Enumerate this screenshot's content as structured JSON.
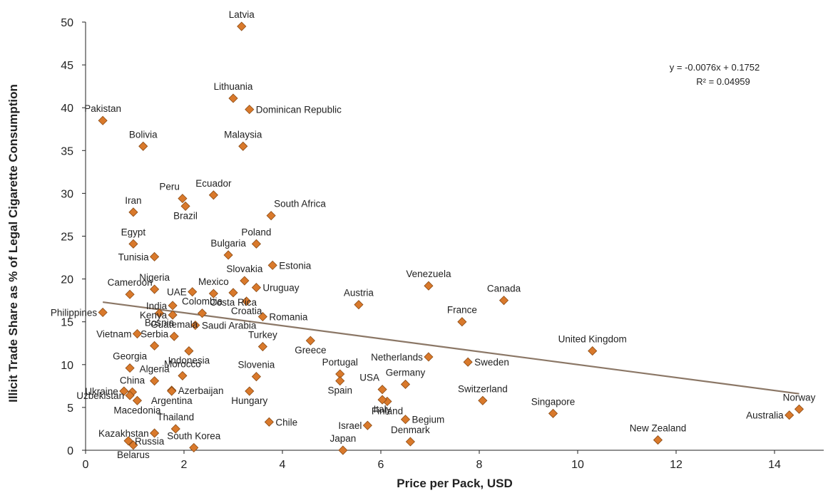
{
  "chart_data": {
    "type": "scatter",
    "xlabel": "Price per Pack, USD",
    "ylabel": "Illicit Trade Share as % of Legal Cigarette Consumption",
    "xlim": [
      0,
      15
    ],
    "ylim": [
      0,
      50
    ],
    "xticks": [
      0,
      2,
      4,
      6,
      8,
      10,
      12,
      14
    ],
    "yticks": [
      0,
      5,
      10,
      15,
      20,
      25,
      30,
      35,
      40,
      45,
      50
    ],
    "grid": false,
    "point_color": "#D9792B",
    "trendline_color": "#8B7766",
    "equation": "y = -0.0076x + 0.1752",
    "r_squared": "R² = 0.04959",
    "trendline": {
      "x0": 0.35,
      "y0": 17.3,
      "x1": 14.5,
      "y1": 6.6
    },
    "points": [
      {
        "label": "Latvia",
        "x": 3.17,
        "y": 49.5,
        "anchor": "top"
      },
      {
        "label": "Lithuania",
        "x": 3.0,
        "y": 41.1,
        "anchor": "top"
      },
      {
        "label": "Dominican Republic",
        "x": 3.33,
        "y": 39.8,
        "anchor": "right"
      },
      {
        "label": "Pakistan",
        "x": 0.35,
        "y": 38.5,
        "anchor": "top"
      },
      {
        "label": "Bolivia",
        "x": 1.17,
        "y": 35.5,
        "anchor": "top"
      },
      {
        "label": "Malaysia",
        "x": 3.2,
        "y": 35.5,
        "anchor": "top"
      },
      {
        "label": "Peru",
        "x": 1.97,
        "y": 29.4,
        "anchor": "topleft"
      },
      {
        "label": "Ecuador",
        "x": 2.6,
        "y": 29.8,
        "anchor": "top"
      },
      {
        "label": "Brazil",
        "x": 2.03,
        "y": 28.5,
        "anchor": "below"
      },
      {
        "label": "Iran",
        "x": 0.97,
        "y": 27.8,
        "anchor": "top"
      },
      {
        "label": "South Africa",
        "x": 3.77,
        "y": 27.4,
        "anchor": "topright"
      },
      {
        "label": "Poland",
        "x": 3.47,
        "y": 24.1,
        "anchor": "top"
      },
      {
        "label": "Egypt",
        "x": 0.97,
        "y": 24.1,
        "anchor": "top"
      },
      {
        "label": "Bulgaria",
        "x": 2.9,
        "y": 22.8,
        "anchor": "top"
      },
      {
        "label": "Tunisia",
        "x": 1.4,
        "y": 22.6,
        "anchor": "left"
      },
      {
        "label": "Estonia",
        "x": 3.8,
        "y": 21.6,
        "anchor": "right"
      },
      {
        "label": "Slovakia",
        "x": 3.23,
        "y": 19.8,
        "anchor": "top"
      },
      {
        "label": "Venezuela",
        "x": 6.97,
        "y": 19.2,
        "anchor": "top"
      },
      {
        "label": "Nigeria",
        "x": 1.4,
        "y": 18.8,
        "anchor": "top"
      },
      {
        "label": "Uruguay",
        "x": 3.47,
        "y": 19.0,
        "anchor": "right"
      },
      {
        "label": "UAE",
        "x": 2.17,
        "y": 18.5,
        "anchor": "left"
      },
      {
        "label": "Mexico",
        "x": 2.6,
        "y": 18.3,
        "anchor": "top"
      },
      {
        "label": "Cameroon",
        "x": 0.9,
        "y": 18.2,
        "anchor": "top"
      },
      {
        "label": "Costa Rica",
        "x": 3.0,
        "y": 18.4,
        "anchor": "below"
      },
      {
        "label": "Austria",
        "x": 5.55,
        "y": 17.0,
        "anchor": "top"
      },
      {
        "label": "Canada",
        "x": 8.5,
        "y": 17.5,
        "anchor": "top"
      },
      {
        "label": "Croatia",
        "x": 3.27,
        "y": 17.4,
        "anchor": "below"
      },
      {
        "label": "India",
        "x": 1.77,
        "y": 16.9,
        "anchor": "left"
      },
      {
        "label": "Colombia",
        "x": 2.37,
        "y": 16.0,
        "anchor": "top"
      },
      {
        "label": "Philippines",
        "x": 0.35,
        "y": 16.1,
        "anchor": "left"
      },
      {
        "label": "Kenya",
        "x": 1.77,
        "y": 15.8,
        "anchor": "left"
      },
      {
        "label": "Bosnia",
        "x": 1.5,
        "y": 16.0,
        "anchor": "below"
      },
      {
        "label": "Romania",
        "x": 3.6,
        "y": 15.6,
        "anchor": "right"
      },
      {
        "label": "France",
        "x": 7.65,
        "y": 15.0,
        "anchor": "top"
      },
      {
        "label": "Vietnam",
        "x": 1.05,
        "y": 13.6,
        "anchor": "left"
      },
      {
        "label": "Guatemala",
        "x": 1.8,
        "y": 13.3,
        "anchor": "top"
      },
      {
        "label": "Saudi Arabia",
        "x": 2.23,
        "y": 14.6,
        "anchor": "right"
      },
      {
        "label": "Serbia",
        "x": 1.4,
        "y": 12.2,
        "anchor": "top"
      },
      {
        "label": "Turkey",
        "x": 3.6,
        "y": 12.1,
        "anchor": "top"
      },
      {
        "label": "Greece",
        "x": 4.57,
        "y": 12.8,
        "anchor": "below"
      },
      {
        "label": "United Kingdom",
        "x": 10.3,
        "y": 11.6,
        "anchor": "top"
      },
      {
        "label": "Indonesia",
        "x": 2.1,
        "y": 11.6,
        "anchor": "below"
      },
      {
        "label": "Georgia",
        "x": 0.9,
        "y": 9.6,
        "anchor": "top"
      },
      {
        "label": "Netherlands",
        "x": 6.97,
        "y": 10.9,
        "anchor": "left"
      },
      {
        "label": "Sweden",
        "x": 7.77,
        "y": 10.3,
        "anchor": "right"
      },
      {
        "label": "Portugal",
        "x": 5.17,
        "y": 8.9,
        "anchor": "top"
      },
      {
        "label": "Algeria",
        "x": 1.4,
        "y": 8.1,
        "anchor": "top"
      },
      {
        "label": "Morocco",
        "x": 1.97,
        "y": 8.7,
        "anchor": "top"
      },
      {
        "label": "Slovenia",
        "x": 3.47,
        "y": 8.6,
        "anchor": "top"
      },
      {
        "label": "Spain",
        "x": 5.17,
        "y": 8.1,
        "anchor": "below"
      },
      {
        "label": "Germany",
        "x": 6.5,
        "y": 7.7,
        "anchor": "top"
      },
      {
        "label": "Ukraine",
        "x": 0.78,
        "y": 6.9,
        "anchor": "left"
      },
      {
        "label": "China",
        "x": 0.95,
        "y": 6.8,
        "anchor": "top"
      },
      {
        "label": "Azerbaijan",
        "x": 1.75,
        "y": 7.0,
        "anchor": "right"
      },
      {
        "label": "Argentina",
        "x": 1.75,
        "y": 6.9,
        "anchor": "below"
      },
      {
        "label": "USA",
        "x": 6.03,
        "y": 7.1,
        "anchor": "topleft"
      },
      {
        "label": "Switzerland",
        "x": 8.07,
        "y": 5.8,
        "anchor": "top"
      },
      {
        "label": "Hungary",
        "x": 3.33,
        "y": 6.9,
        "anchor": "below"
      },
      {
        "label": "Finland",
        "x": 6.13,
        "y": 5.7,
        "anchor": "below"
      },
      {
        "label": "Uzbekistan",
        "x": 0.9,
        "y": 6.4,
        "anchor": "left"
      },
      {
        "label": "Macedonia",
        "x": 1.05,
        "y": 5.8,
        "anchor": "below"
      },
      {
        "label": "Singapore",
        "x": 9.5,
        "y": 4.3,
        "anchor": "top"
      },
      {
        "label": "Norway",
        "x": 14.5,
        "y": 4.8,
        "anchor": "top"
      },
      {
        "label": "Australia",
        "x": 14.3,
        "y": 4.1,
        "anchor": "left"
      },
      {
        "label": "Italy",
        "x": 6.03,
        "y": 5.9,
        "anchor": "below"
      },
      {
        "label": "Begium",
        "x": 6.5,
        "y": 3.6,
        "anchor": "right"
      },
      {
        "label": "Chile",
        "x": 3.73,
        "y": 3.3,
        "anchor": "right"
      },
      {
        "label": "Thailand",
        "x": 1.83,
        "y": 2.5,
        "anchor": "top"
      },
      {
        "label": "Israel",
        "x": 5.73,
        "y": 2.9,
        "anchor": "left"
      },
      {
        "label": "Kazakhstan",
        "x": 1.4,
        "y": 2.0,
        "anchor": "left"
      },
      {
        "label": "Russia",
        "x": 0.87,
        "y": 1.1,
        "anchor": "right"
      },
      {
        "label": "New Zealand",
        "x": 11.63,
        "y": 1.2,
        "anchor": "top"
      },
      {
        "label": "Denmark",
        "x": 6.6,
        "y": 1.0,
        "anchor": "top"
      },
      {
        "label": "South Korea",
        "x": 2.2,
        "y": 0.3,
        "anchor": "top"
      },
      {
        "label": "Belarus",
        "x": 0.97,
        "y": 0.6,
        "anchor": "below"
      },
      {
        "label": "Japan",
        "x": 5.23,
        "y": 0.0,
        "anchor": "top"
      }
    ]
  }
}
